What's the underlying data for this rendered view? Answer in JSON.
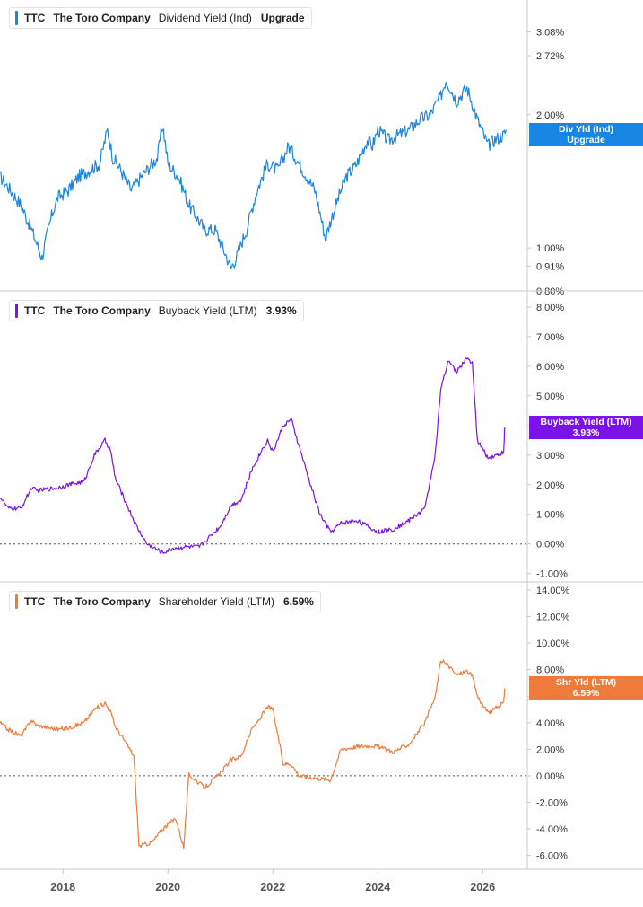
{
  "chart_data": [
    {
      "type": "line",
      "title": "",
      "color": "#1a86e3",
      "scale": "log",
      "legend": {
        "ticker": "TTC",
        "company": "The Toro Company",
        "metric": "Dividend Yield (Ind)",
        "value": "Upgrade"
      },
      "current_tag": {
        "line1": "Div Yld (Ind)",
        "line2": "Upgrade"
      },
      "current_value": 1.8,
      "yticks": [
        "3.08%",
        "2.72%",
        "2.00%",
        "1.00%",
        "0.91%",
        "0.80%"
      ],
      "ytick_values": [
        3.08,
        2.72,
        2.0,
        1.0,
        0.91,
        0.8
      ],
      "ylim": [
        0.8,
        3.5
      ],
      "zero_line": false,
      "series": [
        {
          "name": "Dividend Yield (Ind)",
          "x": [
            2016.8,
            2017.0,
            2017.2,
            2017.4,
            2017.6,
            2017.8,
            2017.9,
            2018.1,
            2018.3,
            2018.5,
            2018.7,
            2018.85,
            2018.95,
            2019.1,
            2019.3,
            2019.5,
            2019.8,
            2019.9,
            2020.0,
            2020.2,
            2020.4,
            2020.7,
            2020.9,
            2021.2,
            2021.3,
            2021.5,
            2021.7,
            2021.9,
            2022.1,
            2022.3,
            2022.5,
            2022.8,
            2023.0,
            2023.2,
            2023.4,
            2023.6,
            2023.8,
            2023.9,
            2024.0,
            2024.2,
            2024.4,
            2024.6,
            2024.8,
            2025.0,
            2025.2,
            2025.3,
            2025.5,
            2025.7,
            2025.9,
            2026.1,
            2026.2,
            2026.4,
            2026.45
          ],
          "y": [
            1.45,
            1.35,
            1.25,
            1.1,
            0.95,
            1.2,
            1.3,
            1.35,
            1.45,
            1.5,
            1.55,
            1.85,
            1.6,
            1.5,
            1.35,
            1.45,
            1.6,
            1.9,
            1.55,
            1.45,
            1.25,
            1.1,
            1.1,
            0.9,
            0.95,
            1.1,
            1.35,
            1.55,
            1.5,
            1.7,
            1.55,
            1.35,
            1.05,
            1.25,
            1.45,
            1.55,
            1.75,
            1.7,
            1.85,
            1.75,
            1.8,
            1.85,
            1.95,
            2.0,
            2.2,
            2.4,
            2.15,
            2.3,
            1.95,
            1.7,
            1.75,
            1.8,
            1.85
          ]
        }
      ]
    },
    {
      "type": "line",
      "title": "",
      "color": "#7b12e8",
      "scale": "linear",
      "legend": {
        "ticker": "TTC",
        "company": "The Toro Company",
        "metric": "Buyback Yield (LTM)",
        "value": "3.93%"
      },
      "current_tag": {
        "line1": "Buyback Yield (LTM)",
        "line2": "3.93%"
      },
      "current_value": 3.93,
      "yticks": [
        "8.00%",
        "7.00%",
        "6.00%",
        "5.00%",
        "4.00%",
        "3.00%",
        "2.00%",
        "1.00%",
        "0.00%",
        "-1.00%"
      ],
      "ytick_values": [
        8,
        7,
        6,
        5,
        4,
        3,
        2,
        1,
        0,
        -1
      ],
      "ylim": [
        -1.1,
        8.3
      ],
      "zero_line": true,
      "series": [
        {
          "name": "Buyback Yield (LTM)",
          "x": [
            2016.8,
            2016.95,
            2017.2,
            2017.4,
            2017.5,
            2017.9,
            2018.1,
            2018.4,
            2018.6,
            2018.8,
            2018.9,
            2019.0,
            2019.2,
            2019.4,
            2019.6,
            2019.9,
            2020.1,
            2020.3,
            2020.6,
            2021.0,
            2021.2,
            2021.4,
            2021.6,
            2021.8,
            2021.9,
            2022.0,
            2022.2,
            2022.35,
            2022.5,
            2022.7,
            2022.9,
            2023.1,
            2023.3,
            2023.6,
            2023.9,
            2024.0,
            2024.3,
            2024.6,
            2024.9,
            2025.1,
            2025.2,
            2025.35,
            2025.5,
            2025.7,
            2025.8,
            2025.9,
            2026.1,
            2026.25,
            2026.4,
            2026.42
          ],
          "y": [
            1.6,
            1.2,
            1.2,
            1.9,
            1.8,
            1.9,
            2.0,
            2.1,
            3.0,
            3.5,
            3.2,
            2.2,
            1.4,
            0.6,
            0.0,
            -0.3,
            -0.15,
            -0.1,
            -0.1,
            0.6,
            1.3,
            1.5,
            2.5,
            3.2,
            3.5,
            3.1,
            4.0,
            4.2,
            3.3,
            2.1,
            1.0,
            0.4,
            0.7,
            0.8,
            0.5,
            0.4,
            0.5,
            0.8,
            1.2,
            3.1,
            5.2,
            6.2,
            5.8,
            6.3,
            6.1,
            3.5,
            2.9,
            3.0,
            3.1,
            3.93
          ]
        }
      ]
    },
    {
      "type": "line",
      "title": "",
      "color": "#f07a3a",
      "scale": "linear",
      "legend": {
        "ticker": "TTC",
        "company": "The Toro Company",
        "metric": "Shareholder Yield (LTM)",
        "value": "6.59%"
      },
      "current_tag": {
        "line1": "Shr Yld (LTM)",
        "line2": "6.59%"
      },
      "current_value": 6.59,
      "yticks": [
        "14.00%",
        "12.00%",
        "10.00%",
        "8.00%",
        "6.00%",
        "4.00%",
        "2.00%",
        "0.00%",
        "-2.00%",
        "-4.00%",
        "-6.00%"
      ],
      "ytick_values": [
        14,
        12,
        10,
        8,
        6,
        4,
        2,
        0,
        -2,
        -4,
        -6
      ],
      "ylim": [
        -6.5,
        14.2
      ],
      "zero_line": true,
      "series": [
        {
          "name": "Shareholder Yield (LTM)",
          "x": [
            2016.8,
            2016.95,
            2017.2,
            2017.4,
            2017.5,
            2017.9,
            2018.1,
            2018.4,
            2018.6,
            2018.8,
            2018.9,
            2019.0,
            2019.2,
            2019.35,
            2019.45,
            2019.7,
            2019.9,
            2020.15,
            2020.3,
            2020.4,
            2020.7,
            2021.0,
            2021.2,
            2021.4,
            2021.6,
            2021.8,
            2021.9,
            2022.0,
            2022.2,
            2022.35,
            2022.5,
            2022.7,
            2022.9,
            2023.1,
            2023.3,
            2023.6,
            2023.9,
            2024.0,
            2024.3,
            2024.6,
            2024.9,
            2025.1,
            2025.2,
            2025.35,
            2025.5,
            2025.7,
            2025.8,
            2025.9,
            2026.1,
            2026.25,
            2026.4,
            2026.42
          ],
          "y": [
            4.0,
            3.5,
            3.0,
            4.2,
            3.8,
            3.5,
            3.6,
            4.0,
            5.0,
            5.5,
            4.9,
            3.7,
            2.5,
            1.5,
            -5.3,
            -5.0,
            -4.0,
            -3.2,
            -5.4,
            0.1,
            -0.9,
            0.2,
            1.2,
            1.5,
            3.5,
            4.6,
            5.2,
            5.0,
            0.9,
            0.9,
            0.0,
            -0.1,
            -0.2,
            -0.3,
            2.0,
            2.2,
            2.3,
            2.2,
            1.8,
            2.4,
            4.0,
            6.0,
            8.7,
            8.3,
            7.6,
            7.9,
            7.5,
            6.0,
            4.7,
            5.1,
            5.5,
            6.59
          ]
        }
      ]
    }
  ],
  "x_axis": {
    "ticks": [
      "2018",
      "2020",
      "2022",
      "2024",
      "2026"
    ],
    "tick_values": [
      2018,
      2020,
      2022,
      2024,
      2026
    ],
    "range": [
      2016.8,
      2026.85
    ]
  }
}
